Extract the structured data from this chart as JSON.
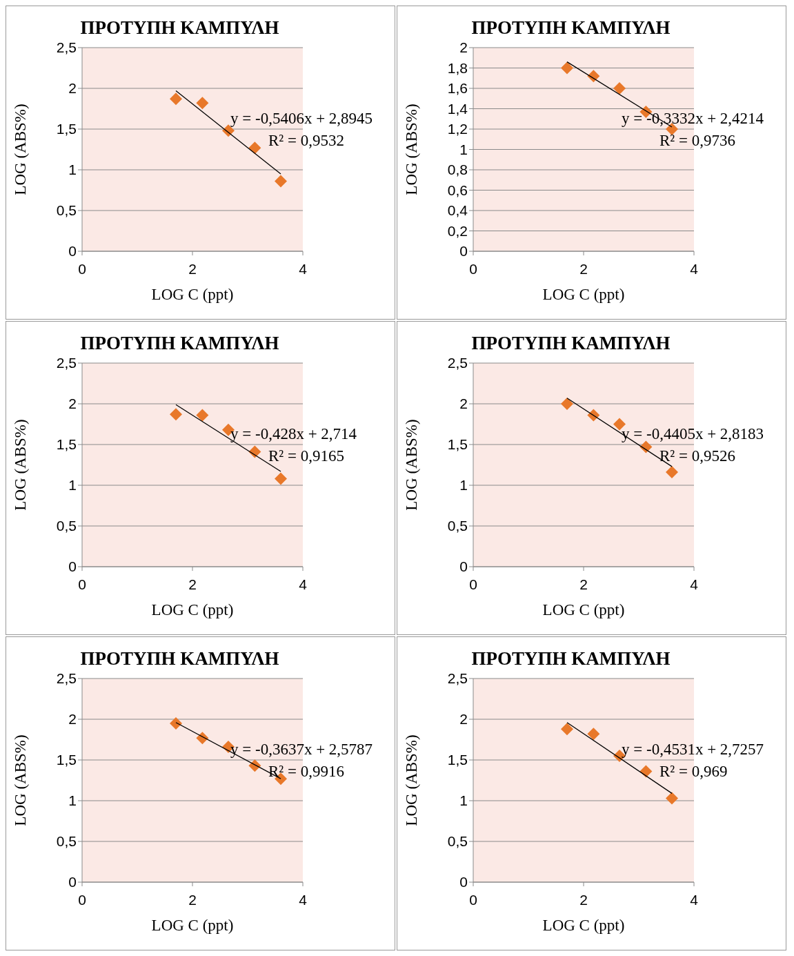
{
  "chart_data": [
    {
      "type": "scatter",
      "title": "ΠΡΟΤΥΠΗ ΚΑΜΠΥΛΗ",
      "xlabel": "LOG C (ppt)",
      "ylabel": "LOG (ABS%)",
      "xlim": [
        0,
        4
      ],
      "xticks": [
        0,
        2,
        4
      ],
      "ylim": [
        0,
        2.5
      ],
      "yticks": [
        0,
        {
          "value": 0.5,
          "label": "0,5"
        },
        1,
        {
          "value": 1.5,
          "label": "1,5"
        },
        2,
        {
          "value": 2.5,
          "label": "2,5"
        }
      ],
      "grid": "y",
      "legend": false,
      "annotations": [
        "y = -0,5406x + 2,8945",
        "R² = 0,9532"
      ],
      "series": [
        {
          "type": "scatter",
          "marker": "diamond",
          "color": "#e8782a",
          "x": [
            1.7,
            2.18,
            2.65,
            3.13,
            3.6
          ],
          "values": [
            1.87,
            1.82,
            1.48,
            1.27,
            0.86
          ]
        },
        {
          "type": "line",
          "marker": "none",
          "line_style": "solid",
          "color": "#000000",
          "x": [
            1.7,
            3.6
          ],
          "values": [
            1.97,
            0.95
          ]
        }
      ]
    },
    {
      "type": "scatter",
      "title": "ΠΡΟΤΥΠΗ ΚΑΜΠΥΛΗ",
      "xlabel": "LOG C (ppt)",
      "ylabel": "LOG (ABS%)",
      "xlim": [
        0,
        4
      ],
      "xticks": [
        0,
        2,
        4
      ],
      "ylim": [
        0,
        2
      ],
      "yticks": [
        0,
        {
          "value": 0.2,
          "label": "0,2"
        },
        {
          "value": 0.4,
          "label": "0,4"
        },
        {
          "value": 0.6,
          "label": "0,6"
        },
        {
          "value": 0.8,
          "label": "0,8"
        },
        1,
        {
          "value": 1.2,
          "label": "1,2"
        },
        {
          "value": 1.4,
          "label": "1,4"
        },
        {
          "value": 1.6,
          "label": "1,6"
        },
        {
          "value": 1.8,
          "label": "1,8"
        },
        2
      ],
      "grid": "y",
      "legend": false,
      "annotations": [
        "y = -0,3332x + 2,4214",
        "R² = 0,9736"
      ],
      "series": [
        {
          "type": "scatter",
          "marker": "diamond",
          "color": "#e8782a",
          "x": [
            1.7,
            2.18,
            2.65,
            3.13,
            3.6
          ],
          "values": [
            1.8,
            1.72,
            1.6,
            1.37,
            1.2
          ]
        },
        {
          "type": "line",
          "marker": "none",
          "line_style": "solid",
          "color": "#000000",
          "x": [
            1.7,
            3.6
          ],
          "values": [
            1.86,
            1.22
          ]
        }
      ]
    },
    {
      "type": "scatter",
      "title": "ΠΡΟΤΥΠΗ ΚΑΜΠΥΛΗ",
      "xlabel": "LOG C (ppt)",
      "ylabel": "LOG (ABS%)",
      "xlim": [
        0,
        4
      ],
      "xticks": [
        0,
        2,
        4
      ],
      "ylim": [
        0,
        2.5
      ],
      "yticks": [
        0,
        {
          "value": 0.5,
          "label": "0,5"
        },
        1,
        {
          "value": 1.5,
          "label": "1,5"
        },
        2,
        {
          "value": 2.5,
          "label": "2,5"
        }
      ],
      "grid": "y",
      "legend": false,
      "annotations": [
        "y = -0,428x + 2,714",
        "R² = 0,9165"
      ],
      "series": [
        {
          "type": "scatter",
          "marker": "diamond",
          "color": "#e8782a",
          "x": [
            1.7,
            2.18,
            2.65,
            3.13,
            3.6
          ],
          "values": [
            1.87,
            1.86,
            1.68,
            1.41,
            1.08
          ]
        },
        {
          "type": "line",
          "marker": "none",
          "line_style": "solid",
          "color": "#000000",
          "x": [
            1.7,
            3.6
          ],
          "values": [
            1.99,
            1.17
          ]
        }
      ]
    },
    {
      "type": "scatter",
      "title": "ΠΡΟΤΥΠΗ ΚΑΜΠΥΛΗ",
      "xlabel": "LOG C (ppt)",
      "ylabel": "LOG (ABS%)",
      "xlim": [
        0,
        4
      ],
      "xticks": [
        0,
        2,
        4
      ],
      "ylim": [
        0,
        2.5
      ],
      "yticks": [
        0,
        {
          "value": 0.5,
          "label": "0,5"
        },
        1,
        {
          "value": 1.5,
          "label": "1,5"
        },
        2,
        {
          "value": 2.5,
          "label": "2,5"
        }
      ],
      "grid": "y",
      "legend": false,
      "annotations": [
        "y = -0,4405x + 2,8183",
        "R² = 0,9526"
      ],
      "series": [
        {
          "type": "scatter",
          "marker": "diamond",
          "color": "#e8782a",
          "x": [
            1.7,
            2.18,
            2.65,
            3.13,
            3.6
          ],
          "values": [
            2.0,
            1.86,
            1.75,
            1.47,
            1.16
          ]
        },
        {
          "type": "line",
          "marker": "none",
          "line_style": "solid",
          "color": "#000000",
          "x": [
            1.7,
            3.6
          ],
          "values": [
            2.07,
            1.23
          ]
        }
      ]
    },
    {
      "type": "scatter",
      "title": "ΠΡΟΤΥΠΗ ΚΑΜΠΥΛΗ",
      "xlabel": "LOG C (ppt)",
      "ylabel": "LOG (ABS%)",
      "xlim": [
        0,
        4
      ],
      "xticks": [
        0,
        2,
        4
      ],
      "ylim": [
        0,
        2.5
      ],
      "yticks": [
        0,
        {
          "value": 0.5,
          "label": "0,5"
        },
        1,
        {
          "value": 1.5,
          "label": "1,5"
        },
        2,
        {
          "value": 2.5,
          "label": "2,5"
        }
      ],
      "grid": "y",
      "legend": false,
      "annotations": [
        "y = -0,3637x + 2,5787",
        "R² = 0,9916"
      ],
      "series": [
        {
          "type": "scatter",
          "marker": "diamond",
          "color": "#e8782a",
          "x": [
            1.7,
            2.18,
            2.65,
            3.13,
            3.6
          ],
          "values": [
            1.95,
            1.77,
            1.66,
            1.43,
            1.27
          ]
        },
        {
          "type": "line",
          "marker": "none",
          "line_style": "solid",
          "color": "#000000",
          "x": [
            1.7,
            3.6
          ],
          "values": [
            1.96,
            1.27
          ]
        }
      ]
    },
    {
      "type": "scatter",
      "title": "ΠΡΟΤΥΠΗ ΚΑΜΠΥΛΗ",
      "xlabel": "LOG C (ppt)",
      "ylabel": "LOG (ABS%)",
      "xlim": [
        0,
        4
      ],
      "xticks": [
        0,
        2,
        4
      ],
      "ylim": [
        0,
        2.5
      ],
      "yticks": [
        0,
        {
          "value": 0.5,
          "label": "0,5"
        },
        1,
        {
          "value": 1.5,
          "label": "1,5"
        },
        2,
        {
          "value": 2.5,
          "label": "2,5"
        }
      ],
      "grid": "y",
      "legend": false,
      "annotations": [
        "y = -0,4531x + 2,7257",
        "R² = 0,969"
      ],
      "series": [
        {
          "type": "scatter",
          "marker": "diamond",
          "color": "#e8782a",
          "x": [
            1.7,
            2.18,
            2.65,
            3.13,
            3.6
          ],
          "values": [
            1.88,
            1.82,
            1.55,
            1.36,
            1.03
          ]
        },
        {
          "type": "line",
          "marker": "none",
          "line_style": "solid",
          "color": "#000000",
          "x": [
            1.7,
            3.6
          ],
          "values": [
            1.96,
            1.09
          ]
        }
      ]
    }
  ]
}
